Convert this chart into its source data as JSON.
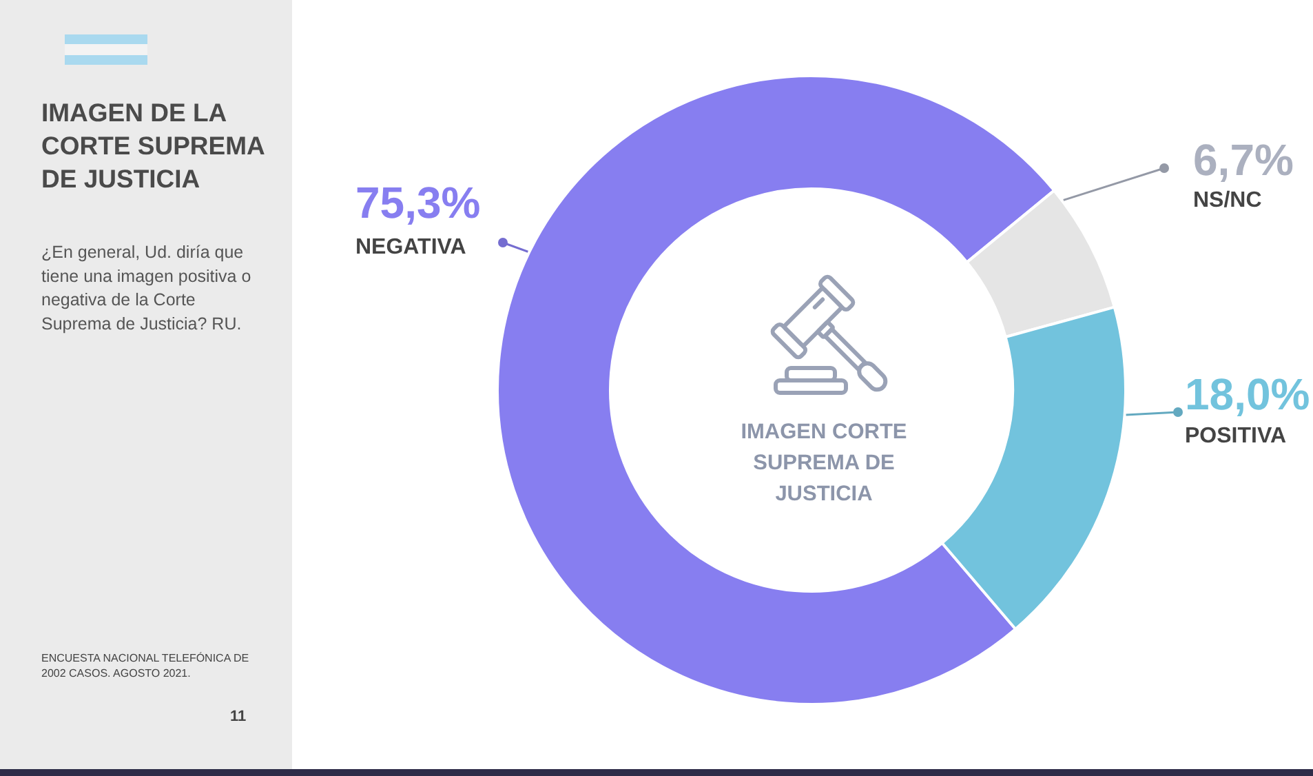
{
  "chart_data": {
    "type": "donut",
    "title": "IMAGEN DE LA CORTE SUPREMA DE JUSTICIA",
    "subtitle": "¿En general, Ud. diría que tiene una imagen positiva o negativa de la Corte Suprema de Justicia? RU.",
    "categories": [
      "NEGATIVA",
      "NS/NC",
      "POSITIVA"
    ],
    "values": [
      75.3,
      6.7,
      18.0
    ],
    "colors": [
      "#877ef0",
      "#e5e5e5",
      "#72c3dd"
    ],
    "value_labels": [
      "75,3%",
      "6,7%",
      "18,0%"
    ],
    "annotations": [
      "IMAGEN CORTE SUPREMA DE JUSTICIA",
      "ENCUESTA NACIONAL TELEFÓNICA DE 2002 CASOS. AGOSTO 2021.",
      "11"
    ]
  }
}
